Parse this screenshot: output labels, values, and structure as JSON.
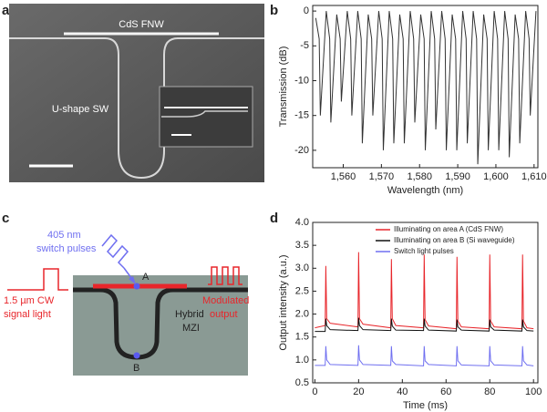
{
  "panel_labels": [
    "a",
    "b",
    "c",
    "d"
  ],
  "panel_a": {
    "fnw": "CdS FNW",
    "waveguide": "U-shape SW"
  },
  "panel_c": {
    "switch_1": "405 nm",
    "switch_2": "switch pulses",
    "signal_1": "1.5 µm CW",
    "signal_2": "signal light",
    "point_a": "A",
    "point_b": "B",
    "mzi_1": "Hybrid",
    "mzi_2": "MZI",
    "output_1": "Modulated",
    "output_2": "output"
  },
  "chart_data": [
    {
      "type": "line",
      "x_label": "Wavelength (nm)",
      "y_label": "Transmission (dB)",
      "color": "#333333",
      "xlim": [
        1552,
        1611
      ],
      "ylim": [
        -22.5,
        0.8
      ],
      "xticks": [
        {
          "value": 1560,
          "label": "1,560"
        },
        {
          "value": 1570,
          "label": "1,570"
        },
        {
          "value": 1580,
          "label": "1,580"
        },
        {
          "value": 1590,
          "label": "1,590"
        },
        {
          "value": 1600,
          "label": "1,600"
        },
        {
          "value": 1610,
          "label": "1,610"
        }
      ],
      "yticks": [
        0,
        -5,
        -10,
        -15,
        -20
      ],
      "x": [
        1552.8,
        1553.7,
        1554,
        1555.55,
        1556.45,
        1556.75,
        1558.3,
        1559.2,
        1559.5,
        1561.05,
        1561.95,
        1562.25,
        1563.8,
        1564.7,
        1565,
        1566.55,
        1567.45,
        1567.75,
        1569.3,
        1570.2,
        1570.5,
        1572.05,
        1572.95,
        1573.25,
        1574.8,
        1575.7,
        1576,
        1577.55,
        1578.45,
        1578.75,
        1580.3,
        1581.2,
        1581.5,
        1583.05,
        1583.95,
        1584.25,
        1585.8,
        1586.7,
        1587,
        1588.55,
        1589.45,
        1589.75,
        1591.3,
        1592.2,
        1592.5,
        1594.05,
        1594.95,
        1595.25,
        1596.8,
        1597.7,
        1598,
        1599.55,
        1600.45,
        1600.75,
        1602.3,
        1603.2,
        1603.5,
        1605.05,
        1605.95,
        1606.25,
        1607.8,
        1608.7,
        1609,
        1610.5
      ],
      "values": [
        -1,
        -4,
        -15,
        0,
        -4,
        -16,
        -0.5,
        -4,
        -13,
        0,
        -4,
        -15,
        0,
        -4,
        -19,
        -0.5,
        -4,
        -15,
        0,
        -4,
        -20,
        0,
        -4,
        -19,
        -0.5,
        -4,
        -19,
        0,
        -4,
        -16,
        -0.5,
        -4,
        -20,
        0,
        -4,
        -17,
        0,
        -4,
        -20,
        -0.5,
        -4,
        -20,
        0,
        -4,
        -19,
        0,
        -4,
        -22,
        -0.5,
        -4,
        -20,
        0,
        -4,
        -20,
        0,
        -4,
        -21,
        -0.5,
        -4,
        -19,
        0,
        -4,
        -15,
        0
      ]
    },
    {
      "type": "line",
      "x_label": "Time (ms)",
      "y_label": "Output intensity (a.u.)",
      "legend": "upper right",
      "xlim": [
        -1,
        102
      ],
      "ylim": [
        0.5,
        4.0
      ],
      "xticks": [
        0,
        20,
        40,
        60,
        80,
        100
      ],
      "yticks": [
        0.5,
        {
          "value": 1.0,
          "label": "1.0"
        },
        1.5,
        {
          "value": 2.0,
          "label": "2.0"
        },
        2.5,
        {
          "value": 3.0,
          "label": "3.0"
        },
        3.5,
        {
          "value": 4.0,
          "label": "4.0"
        }
      ],
      "x": [
        0,
        4.7,
        5,
        5.4,
        7,
        19.7,
        20,
        20.4,
        22,
        34.7,
        35,
        35.4,
        37,
        49.7,
        50,
        50.4,
        52,
        64.7,
        65,
        65.4,
        67,
        79.7,
        80,
        80.4,
        82,
        94.7,
        95,
        95.4,
        97,
        100
      ],
      "series": [
        {
          "name": "Illuminating on area A (CdS FNW)",
          "color": "#e8262b",
          "values": [
            1.7,
            1.75,
            3.05,
            1.9,
            1.8,
            1.72,
            3.35,
            1.9,
            1.78,
            1.7,
            3.2,
            1.9,
            1.75,
            1.7,
            3.3,
            1.88,
            1.74,
            1.68,
            3.25,
            1.85,
            1.72,
            1.68,
            3.3,
            1.85,
            1.72,
            1.68,
            3.3,
            1.85,
            1.7,
            1.68
          ]
        },
        {
          "name": "Illuminating on area B (Si waveguide)",
          "color": "#111111",
          "values": [
            1.62,
            1.62,
            1.9,
            1.75,
            1.66,
            1.64,
            1.92,
            1.75,
            1.66,
            1.64,
            1.9,
            1.74,
            1.65,
            1.64,
            1.9,
            1.74,
            1.65,
            1.63,
            1.88,
            1.72,
            1.65,
            1.63,
            1.88,
            1.72,
            1.65,
            1.63,
            1.88,
            1.72,
            1.64,
            1.63
          ]
        },
        {
          "name": "Switch light pulses",
          "color": "#6f6ff0",
          "values": [
            0.88,
            0.88,
            1.3,
            1.0,
            0.9,
            0.88,
            1.32,
            1.0,
            0.9,
            0.88,
            1.3,
            0.98,
            0.9,
            0.87,
            1.3,
            0.98,
            0.9,
            0.87,
            1.3,
            0.98,
            0.89,
            0.87,
            1.3,
            0.98,
            0.89,
            0.87,
            1.3,
            0.98,
            0.89,
            0.87
          ]
        }
      ]
    }
  ]
}
